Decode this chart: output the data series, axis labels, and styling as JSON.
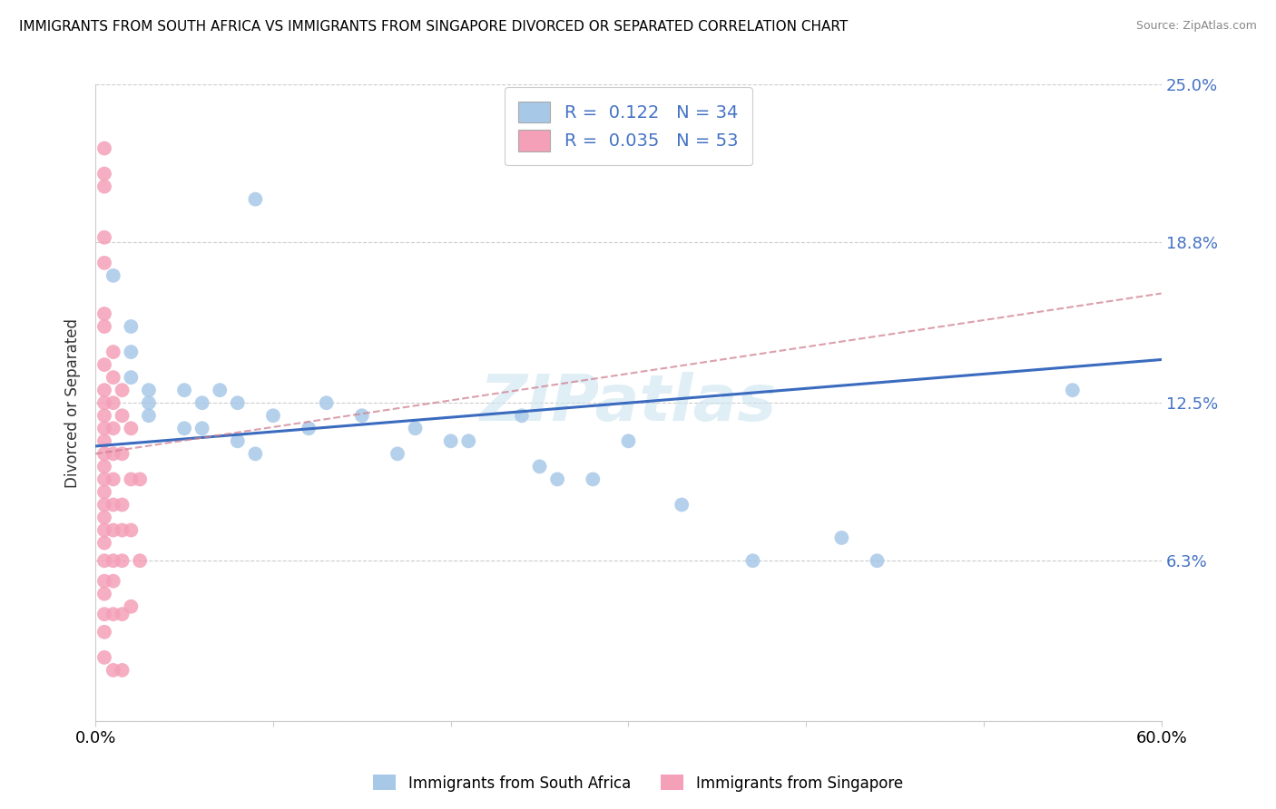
{
  "title": "IMMIGRANTS FROM SOUTH AFRICA VS IMMIGRANTS FROM SINGAPORE DIVORCED OR SEPARATED CORRELATION CHART",
  "source": "Source: ZipAtlas.com",
  "ylabel": "Divorced or Separated",
  "legend_label1": "Immigrants from South Africa",
  "legend_label2": "Immigrants from Singapore",
  "R1": 0.122,
  "N1": 34,
  "R2": 0.035,
  "N2": 53,
  "color_blue": "#a8c8e8",
  "color_pink": "#f4a0b8",
  "color_blue_line": "#3a6bbf",
  "color_pink_line": "#d08090",
  "watermark": "ZIPatlas",
  "xlim": [
    0.0,
    0.6
  ],
  "ylim": [
    0.0,
    0.25
  ],
  "ytick_vals": [
    0.0,
    0.063,
    0.125,
    0.188,
    0.25
  ],
  "ytick_labels": [
    "",
    "6.3%",
    "12.5%",
    "18.8%",
    "25.0%"
  ],
  "blue_x": [
    0.09,
    0.01,
    0.02,
    0.02,
    0.02,
    0.03,
    0.03,
    0.03,
    0.05,
    0.06,
    0.05,
    0.06,
    0.07,
    0.08,
    0.08,
    0.09,
    0.1,
    0.12,
    0.13,
    0.15,
    0.17,
    0.18,
    0.2,
    0.21,
    0.24,
    0.25,
    0.26,
    0.28,
    0.3,
    0.33,
    0.37,
    0.44,
    0.55,
    0.42
  ],
  "blue_y": [
    0.205,
    0.175,
    0.155,
    0.145,
    0.135,
    0.13,
    0.125,
    0.12,
    0.13,
    0.125,
    0.115,
    0.115,
    0.13,
    0.125,
    0.11,
    0.105,
    0.12,
    0.115,
    0.125,
    0.12,
    0.105,
    0.115,
    0.11,
    0.11,
    0.12,
    0.1,
    0.095,
    0.095,
    0.11,
    0.085,
    0.063,
    0.063,
    0.13,
    0.072
  ],
  "pink_x": [
    0.005,
    0.005,
    0.005,
    0.005,
    0.005,
    0.005,
    0.005,
    0.005,
    0.005,
    0.005,
    0.005,
    0.005,
    0.005,
    0.005,
    0.005,
    0.005,
    0.005,
    0.005,
    0.005,
    0.005,
    0.005,
    0.005,
    0.005,
    0.005,
    0.005,
    0.005,
    0.005,
    0.01,
    0.01,
    0.01,
    0.01,
    0.01,
    0.01,
    0.01,
    0.01,
    0.01,
    0.01,
    0.01,
    0.01,
    0.015,
    0.015,
    0.015,
    0.015,
    0.015,
    0.015,
    0.015,
    0.015,
    0.02,
    0.02,
    0.02,
    0.02,
    0.025,
    0.025
  ],
  "pink_y": [
    0.225,
    0.215,
    0.21,
    0.19,
    0.18,
    0.16,
    0.155,
    0.14,
    0.13,
    0.125,
    0.12,
    0.115,
    0.11,
    0.105,
    0.1,
    0.095,
    0.09,
    0.085,
    0.08,
    0.075,
    0.07,
    0.063,
    0.055,
    0.05,
    0.042,
    0.035,
    0.025,
    0.145,
    0.135,
    0.125,
    0.115,
    0.105,
    0.095,
    0.085,
    0.075,
    0.063,
    0.055,
    0.042,
    0.02,
    0.13,
    0.12,
    0.105,
    0.085,
    0.075,
    0.063,
    0.042,
    0.02,
    0.115,
    0.095,
    0.075,
    0.045,
    0.095,
    0.063
  ],
  "blue_trend_x": [
    0.0,
    0.6
  ],
  "blue_trend_y": [
    0.108,
    0.142
  ],
  "pink_trend_x": [
    0.0,
    0.6
  ],
  "pink_trend_y": [
    0.105,
    0.168
  ]
}
